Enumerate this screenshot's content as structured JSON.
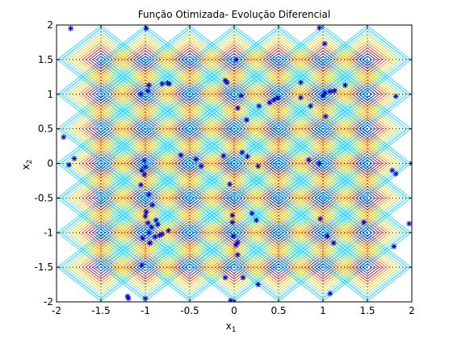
{
  "chart_data": {
    "type": "scatter",
    "title": "Função Otimizada- Evolução Diferencial",
    "xlabel": "x",
    "xlabel_sub": "1",
    "ylabel": "x",
    "ylabel_sub": "2",
    "xlim": [
      -2,
      2
    ],
    "ylim": [
      -2,
      2
    ],
    "xticks": [
      -2,
      -1.5,
      -1,
      -0.5,
      0,
      0.5,
      1,
      1.5,
      2
    ],
    "xtick_labels": [
      "-2",
      "-1.5",
      "-1",
      "-0.5",
      "0",
      "0.5",
      "1",
      "1.5",
      "2"
    ],
    "yticks": [
      -2,
      -1.5,
      -1,
      -0.5,
      0,
      0.5,
      1,
      1.5,
      2
    ],
    "ytick_labels": [
      "-2",
      "-1.5",
      "-1",
      "-0.5",
      "0",
      "0.5",
      "1",
      "1.5",
      "2"
    ],
    "grid": true,
    "grid_color": "#000000",
    "background_contours": {
      "centers_x": [
        -1.5,
        -1,
        -0.5,
        0,
        0.5,
        1,
        1.5
      ],
      "centers_y": [
        -1.5,
        -1,
        -0.5,
        0,
        0.5,
        1,
        1.5
      ],
      "levels": [
        0.05,
        0.09,
        0.13,
        0.17,
        0.21,
        0.25,
        0.29,
        0.33,
        0.37,
        0.41,
        0.45,
        0.49
      ],
      "colors": [
        "#000090",
        "#0000ff",
        "#7f0000",
        "#cc0000",
        "#ff4000",
        "#ff8000",
        "#ffbf00",
        "#dfdf00",
        "#9fdf3f",
        "#40e0ff",
        "#00bfff",
        "#00dfff"
      ]
    },
    "series": [
      {
        "marker": "asterisk",
        "color": "#0000cc",
        "points": [
          [
            -1.84,
            1.95
          ],
          [
            -0.99,
            1.95
          ],
          [
            0.96,
            1.96
          ],
          [
            1.02,
            1.73
          ],
          [
            0.02,
            1.5
          ],
          [
            -0.81,
            1.15
          ],
          [
            -0.75,
            1.16
          ],
          [
            -0.73,
            1.15
          ],
          [
            -0.96,
            1.13
          ],
          [
            -1.05,
            1.0
          ],
          [
            -0.97,
            1.05
          ],
          [
            -0.1,
            1.2
          ],
          [
            -0.08,
            1.17
          ],
          [
            0.08,
            0.98
          ],
          [
            0.04,
            0.8
          ],
          [
            0.14,
            0.63
          ],
          [
            0.28,
            0.83
          ],
          [
            0.4,
            0.88
          ],
          [
            0.45,
            0.92
          ],
          [
            0.49,
            0.95
          ],
          [
            0.75,
            1.17
          ],
          [
            0.75,
            0.95
          ],
          [
            0.86,
            0.83
          ],
          [
            1.0,
            0.98
          ],
          [
            1.02,
            1.02
          ],
          [
            1.08,
            1.04
          ],
          [
            1.13,
            1.05
          ],
          [
            1.25,
            1.13
          ],
          [
            1.03,
            0.68
          ],
          [
            1.82,
            0.97
          ],
          [
            -1.92,
            0.38
          ],
          [
            -1.86,
            -0.02
          ],
          [
            -1.8,
            0.07
          ],
          [
            -1.01,
            0.04
          ],
          [
            -1.0,
            -0.05
          ],
          [
            -1.04,
            -0.1
          ],
          [
            -1.01,
            -0.16
          ],
          [
            -1.05,
            -0.31
          ],
          [
            -0.96,
            -0.45
          ],
          [
            -0.6,
            0.12
          ],
          [
            -0.43,
            0.06
          ],
          [
            -0.37,
            -0.04
          ],
          [
            -0.12,
            0.11
          ],
          [
            -0.05,
            -0.3
          ],
          [
            0.09,
            0.16
          ],
          [
            0.15,
            0.1
          ],
          [
            0.27,
            -0.04
          ],
          [
            0.84,
            0.05
          ],
          [
            0.96,
            0.0
          ],
          [
            1.78,
            -0.1
          ],
          [
            1.82,
            -0.15
          ],
          [
            2.0,
            0.0
          ],
          [
            -0.92,
            -0.6
          ],
          [
            -0.99,
            -0.7
          ],
          [
            -1.0,
            -0.76
          ],
          [
            -0.97,
            -0.86
          ],
          [
            -0.88,
            -0.82
          ],
          [
            -0.86,
            -0.88
          ],
          [
            -0.93,
            -0.92
          ],
          [
            -0.96,
            -1.0
          ],
          [
            -0.89,
            -1.06
          ],
          [
            -0.84,
            -1.04
          ],
          [
            -0.81,
            -1.02
          ],
          [
            -0.74,
            -0.97
          ],
          [
            -1.03,
            -1.08
          ],
          [
            -0.95,
            -1.15
          ],
          [
            -0.95,
            -1.15
          ],
          [
            -0.02,
            -0.75
          ],
          [
            -0.02,
            -0.85
          ],
          [
            -0.01,
            -1.05
          ],
          [
            0.04,
            -1.14
          ],
          [
            0.02,
            -1.18
          ],
          [
            0.04,
            -1.32
          ],
          [
            0.2,
            -0.72
          ],
          [
            0.25,
            -0.82
          ],
          [
            0.97,
            -0.8
          ],
          [
            1.05,
            -1.05
          ],
          [
            1.12,
            -1.15
          ],
          [
            1.46,
            -0.85
          ],
          [
            1.8,
            -1.2
          ],
          [
            1.97,
            -0.87
          ],
          [
            -1.04,
            -1.47
          ],
          [
            -0.1,
            -1.65
          ],
          [
            0.1,
            -1.65
          ],
          [
            0.27,
            -1.75
          ],
          [
            -1.2,
            -1.92
          ],
          [
            -1.19,
            -1.95
          ],
          [
            -1.0,
            -1.95
          ],
          [
            -0.04,
            -1.98
          ],
          [
            0.0,
            -2.0
          ],
          [
            1.08,
            -1.88
          ]
        ]
      }
    ]
  }
}
